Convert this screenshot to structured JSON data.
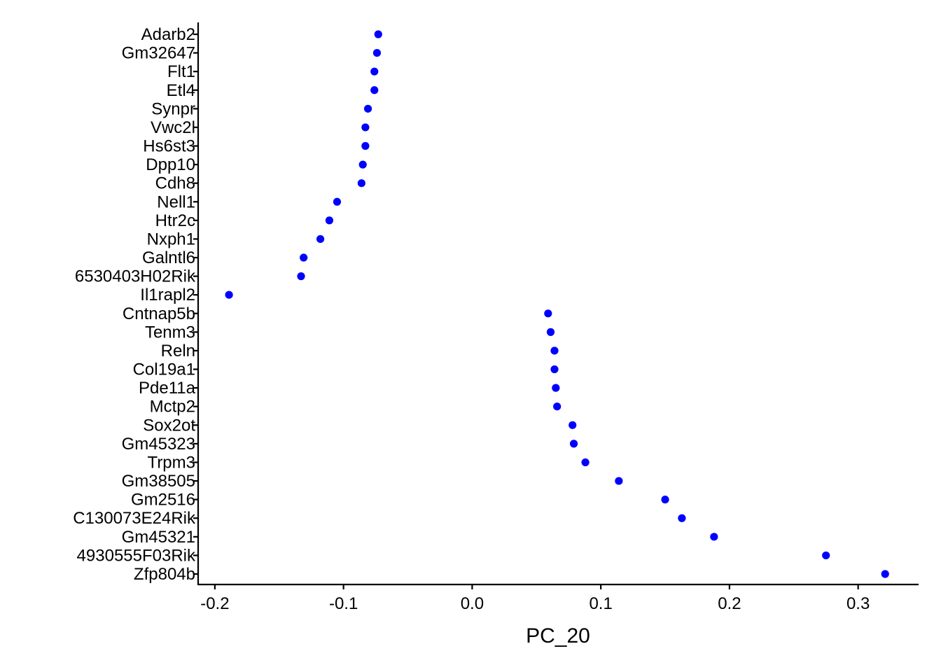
{
  "chart_data": {
    "type": "scatter",
    "title": "",
    "xlabel": "PC_20",
    "ylabel": "",
    "xlim": [
      -0.213,
      0.347
    ],
    "xticks": [
      -0.2,
      -0.1,
      0.0,
      0.1,
      0.2,
      0.3
    ],
    "xtick_labels": [
      "-0.2",
      "-0.1",
      "0.0",
      "0.1",
      "0.2",
      "0.3"
    ],
    "grid": false,
    "legend": "none",
    "point_color": "#0000FF",
    "axis_color": "#000000",
    "categories": [
      "Adarb2",
      "Gm32647",
      "Flt1",
      "Etl4",
      "Synpr",
      "Vwc2l",
      "Hs6st3",
      "Dpp10",
      "Cdh8",
      "Nell1",
      "Htr2c",
      "Nxph1",
      "Galntl6",
      "6530403H02Rik",
      "Il1rapl2",
      "Cntnap5b",
      "Tenm3",
      "Reln",
      "Col19a1",
      "Pde11a",
      "Mctp2",
      "Sox2ot",
      "Gm45323",
      "Trpm3",
      "Gm38505",
      "Gm2516",
      "C130073E24Rik",
      "Gm45321",
      "4930555F03Rik",
      "Zfp804b"
    ],
    "values": [
      -0.073,
      -0.074,
      -0.076,
      -0.076,
      -0.081,
      -0.083,
      -0.083,
      -0.085,
      -0.086,
      -0.105,
      -0.111,
      -0.118,
      -0.131,
      -0.133,
      -0.189,
      0.059,
      0.061,
      0.064,
      0.064,
      0.065,
      0.066,
      0.078,
      0.079,
      0.088,
      0.114,
      0.15,
      0.163,
      0.188,
      0.275,
      0.321
    ]
  }
}
